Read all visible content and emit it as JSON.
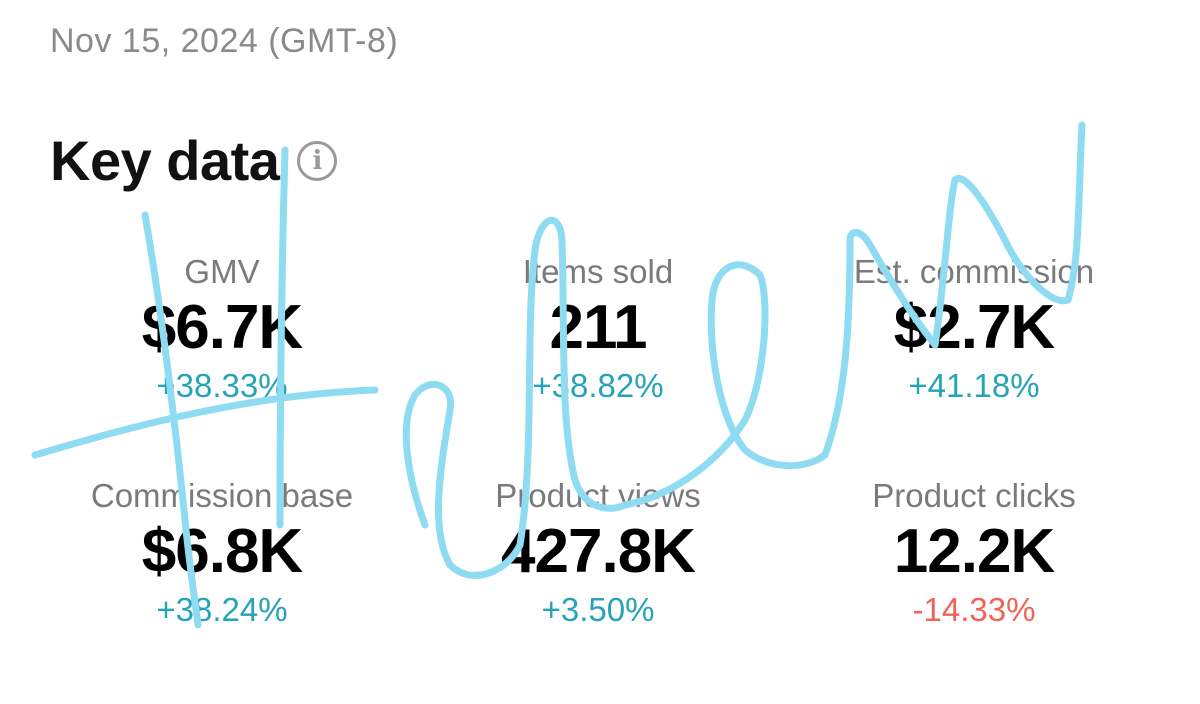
{
  "date_label": "Nov 15, 2024 (GMT-8)",
  "section_title": "Key data",
  "icons": {
    "info": "info-icon"
  },
  "metrics": [
    {
      "label": "GMV",
      "value": "$6.7K",
      "delta": "+38.33%",
      "trend": "up"
    },
    {
      "label": "Items sold",
      "value": "211",
      "delta": "+38.82%",
      "trend": "up"
    },
    {
      "label": "Est. commission",
      "value": "$2.7K",
      "delta": "+41.18%",
      "trend": "up"
    },
    {
      "label": "Commission base",
      "value": "$6.8K",
      "delta": "+38.24%",
      "trend": "up"
    },
    {
      "label": "Product views",
      "value": "427.8K",
      "delta": "+3.50%",
      "trend": "up"
    },
    {
      "label": "Product clicks",
      "value": "12.2K",
      "delta": "-14.33%",
      "trend": "down"
    }
  ],
  "colors": {
    "positive": "#27a3b8",
    "negative": "#f0625a",
    "scribble": "#8fdcf2"
  }
}
